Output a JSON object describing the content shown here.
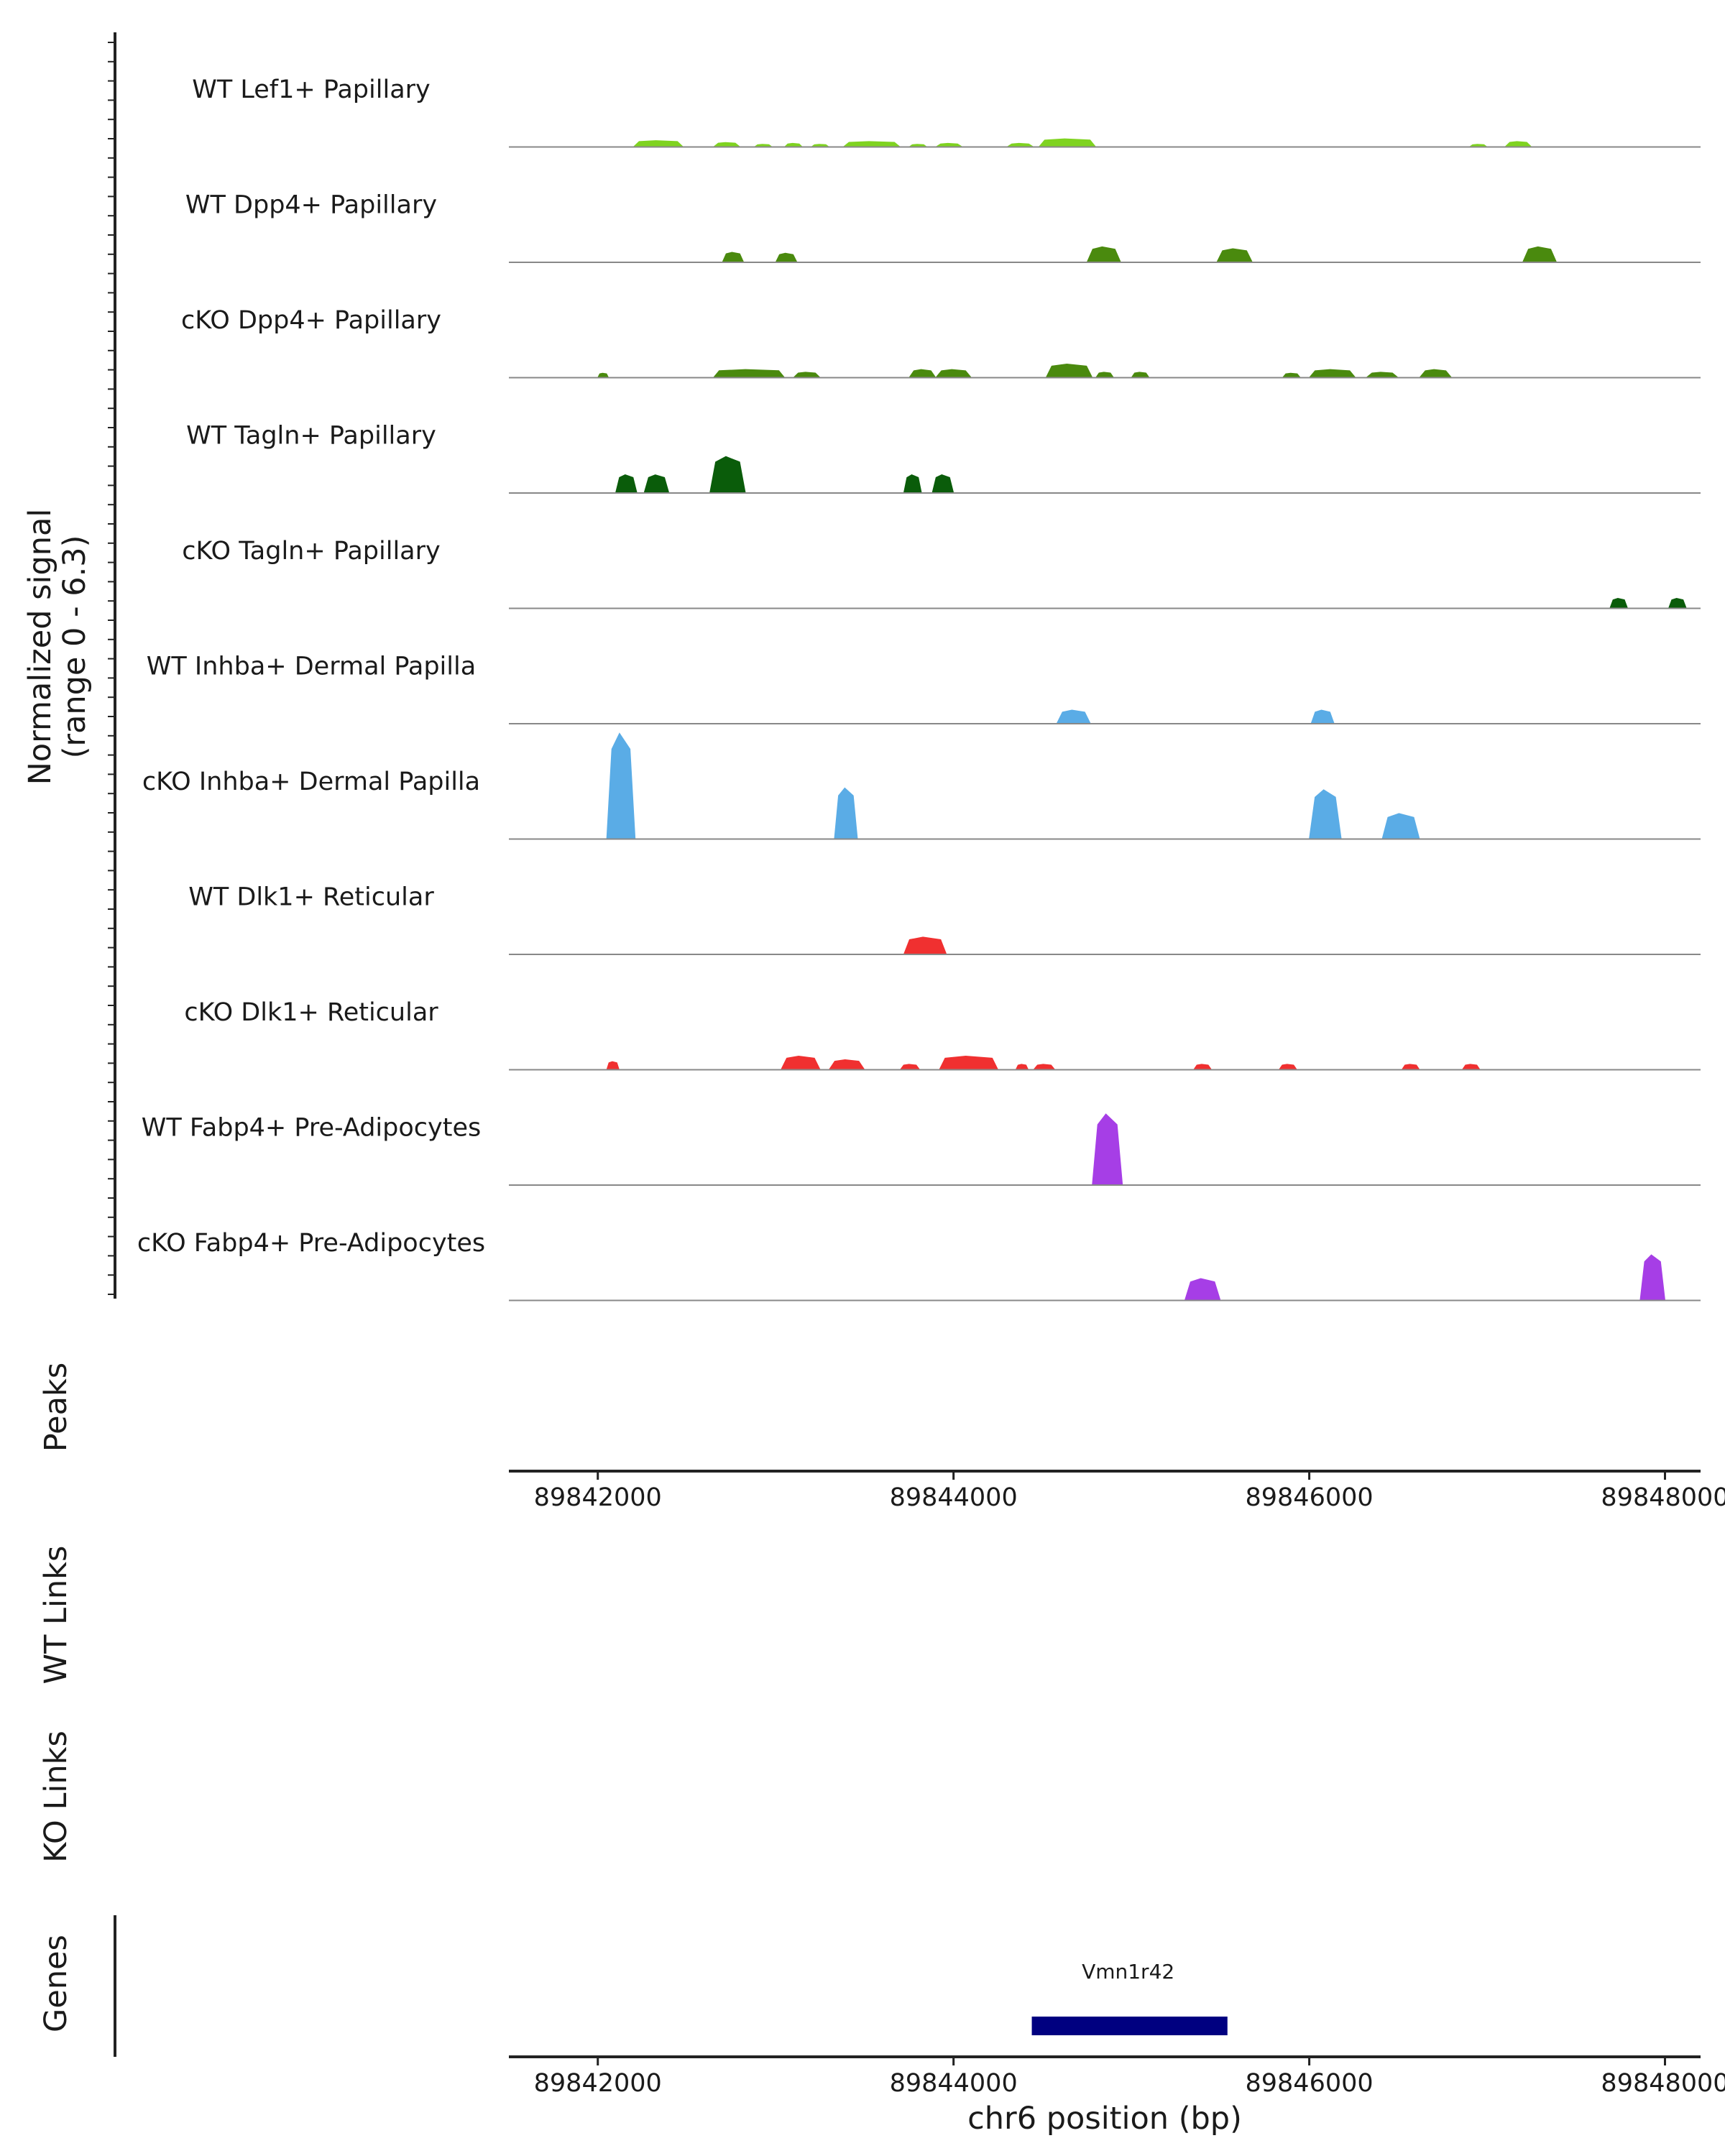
{
  "chart_data": {
    "type": "area",
    "title": "",
    "ylabel_line1": "Normalized signal",
    "ylabel_line2": "(range 0 - 6.3)",
    "ylim": [
      0,
      6.3
    ],
    "xlim": [
      89841500,
      89848200
    ],
    "xlabel": "chr6 position (bp)",
    "x_ticks": [
      89842000,
      89844000,
      89846000,
      89848000
    ],
    "x_tick_labels": [
      "89842000",
      "89844000",
      "89846000",
      "89848000"
    ],
    "tracks": [
      {
        "name": "WT Lef1+ Papillary",
        "color": "#7FD320",
        "peaks": [
          {
            "start": 89842200,
            "end": 89842480,
            "height": 0.35
          },
          {
            "start": 89842650,
            "end": 89842800,
            "height": 0.25
          },
          {
            "start": 89842880,
            "end": 89842980,
            "height": 0.15
          },
          {
            "start": 89843050,
            "end": 89843150,
            "height": 0.2
          },
          {
            "start": 89843200,
            "end": 89843300,
            "height": 0.15
          },
          {
            "start": 89843380,
            "end": 89843700,
            "height": 0.3
          },
          {
            "start": 89843750,
            "end": 89843850,
            "height": 0.15
          },
          {
            "start": 89843900,
            "end": 89844050,
            "height": 0.2
          },
          {
            "start": 89844300,
            "end": 89844450,
            "height": 0.2
          },
          {
            "start": 89844480,
            "end": 89844800,
            "height": 0.45
          },
          {
            "start": 89846900,
            "end": 89847000,
            "height": 0.15
          },
          {
            "start": 89847100,
            "end": 89847250,
            "height": 0.3
          }
        ]
      },
      {
        "name": "WT Dpp4+ Papillary",
        "color": "#4A8A0E",
        "peaks": [
          {
            "start": 89842700,
            "end": 89842820,
            "height": 0.55
          },
          {
            "start": 89843000,
            "end": 89843120,
            "height": 0.5
          },
          {
            "start": 89844750,
            "end": 89844940,
            "height": 0.85
          },
          {
            "start": 89845480,
            "end": 89845680,
            "height": 0.75
          },
          {
            "start": 89847200,
            "end": 89847390,
            "height": 0.85
          }
        ]
      },
      {
        "name": "cKO Dpp4+ Papillary",
        "color": "#4A8A0E",
        "peaks": [
          {
            "start": 89842000,
            "end": 89842060,
            "height": 0.25
          },
          {
            "start": 89842650,
            "end": 89843050,
            "height": 0.45
          },
          {
            "start": 89843100,
            "end": 89843250,
            "height": 0.3
          },
          {
            "start": 89843750,
            "end": 89843900,
            "height": 0.45
          },
          {
            "start": 89843900,
            "end": 89844100,
            "height": 0.45
          },
          {
            "start": 89844520,
            "end": 89844780,
            "height": 0.75
          },
          {
            "start": 89844800,
            "end": 89844900,
            "height": 0.3
          },
          {
            "start": 89845000,
            "end": 89845100,
            "height": 0.3
          },
          {
            "start": 89845850,
            "end": 89845950,
            "height": 0.25
          },
          {
            "start": 89846000,
            "end": 89846260,
            "height": 0.45
          },
          {
            "start": 89846320,
            "end": 89846500,
            "height": 0.3
          },
          {
            "start": 89846620,
            "end": 89846800,
            "height": 0.45
          }
        ]
      },
      {
        "name": "WT Tagln+ Papillary",
        "color": "#0A5C0A",
        "peaks": [
          {
            "start": 89842100,
            "end": 89842220,
            "height": 1.0
          },
          {
            "start": 89842260,
            "end": 89842400,
            "height": 1.0
          },
          {
            "start": 89842630,
            "end": 89842830,
            "height": 2.0
          },
          {
            "start": 89843720,
            "end": 89843820,
            "height": 1.0
          },
          {
            "start": 89843880,
            "end": 89844000,
            "height": 1.0
          }
        ]
      },
      {
        "name": "cKO Tagln+ Papillary",
        "color": "#0A5C0A",
        "peaks": [
          {
            "start": 89847690,
            "end": 89847790,
            "height": 0.55
          },
          {
            "start": 89848020,
            "end": 89848120,
            "height": 0.55
          }
        ]
      },
      {
        "name": "WT Inhba+ Dermal Papilla",
        "color": "#5AACE6",
        "peaks": [
          {
            "start": 89844580,
            "end": 89844770,
            "height": 0.75
          },
          {
            "start": 89846010,
            "end": 89846140,
            "height": 0.75
          }
        ]
      },
      {
        "name": "cKO Inhba+ Dermal Papilla",
        "color": "#5AACE6",
        "peaks": [
          {
            "start": 89842050,
            "end": 89842210,
            "height": 5.8
          },
          {
            "start": 89843330,
            "end": 89843460,
            "height": 2.8
          },
          {
            "start": 89846000,
            "end": 89846180,
            "height": 2.7
          },
          {
            "start": 89846410,
            "end": 89846620,
            "height": 1.4
          }
        ]
      },
      {
        "name": "WT Dlk1+ Reticular",
        "color": "#F03030",
        "peaks": [
          {
            "start": 89843720,
            "end": 89843960,
            "height": 0.95
          }
        ]
      },
      {
        "name": "cKO Dlk1+ Reticular",
        "color": "#F03030",
        "peaks": [
          {
            "start": 89842050,
            "end": 89842120,
            "height": 0.45
          },
          {
            "start": 89843030,
            "end": 89843250,
            "height": 0.75
          },
          {
            "start": 89843300,
            "end": 89843500,
            "height": 0.55
          },
          {
            "start": 89843700,
            "end": 89843810,
            "height": 0.3
          },
          {
            "start": 89843920,
            "end": 89844250,
            "height": 0.75
          },
          {
            "start": 89844350,
            "end": 89844420,
            "height": 0.3
          },
          {
            "start": 89844450,
            "end": 89844570,
            "height": 0.3
          },
          {
            "start": 89845350,
            "end": 89845450,
            "height": 0.3
          },
          {
            "start": 89845830,
            "end": 89845930,
            "height": 0.3
          },
          {
            "start": 89846520,
            "end": 89846620,
            "height": 0.3
          },
          {
            "start": 89846860,
            "end": 89846960,
            "height": 0.3
          }
        ]
      },
      {
        "name": "WT Fabp4+ Pre-Adipocytes",
        "color": "#A63EE6",
        "peaks": [
          {
            "start": 89844780,
            "end": 89844950,
            "height": 3.9
          }
        ]
      },
      {
        "name": "cKO Fabp4+ Pre-Adipocytes",
        "color": "#A63EE6",
        "peaks": [
          {
            "start": 89845300,
            "end": 89845500,
            "height": 1.2
          },
          {
            "start": 89847860,
            "end": 89848000,
            "height": 2.5
          }
        ]
      }
    ],
    "peaks_label": "Peaks",
    "wt_links_label": "WT Links",
    "ko_links_label": "KO Links",
    "genes_label": "Genes",
    "genes": [
      {
        "name": "Vmn1r42",
        "start": 89844440,
        "end": 89845540,
        "color": "#000080"
      }
    ]
  }
}
